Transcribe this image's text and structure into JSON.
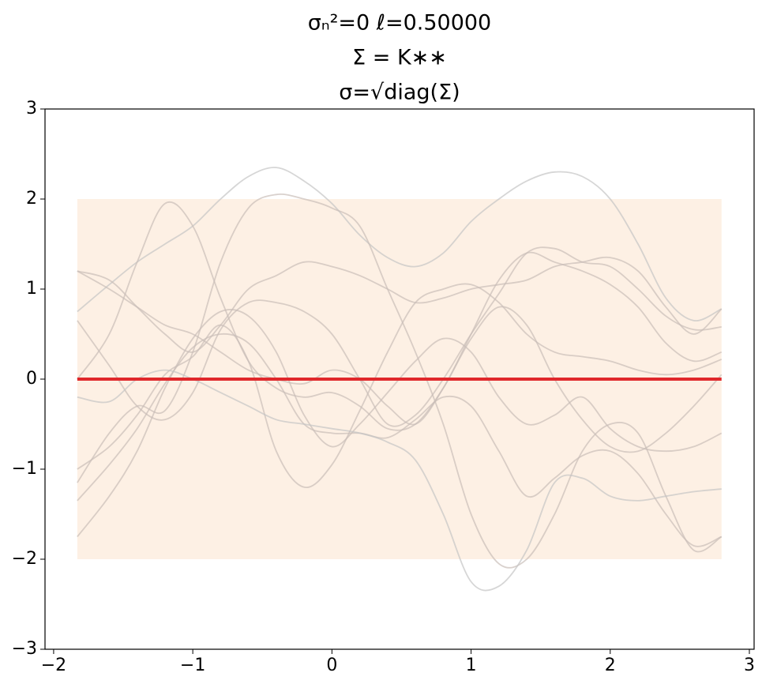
{
  "chart_data": {
    "type": "line",
    "title": [
      "σₙ²=0   ℓ=0.50000",
      "Σ = K∗∗",
      "σ=√diag(Σ)"
    ],
    "x": [
      -1.83,
      -1.6,
      -1.4,
      -1.2,
      -1.0,
      -0.8,
      -0.6,
      -0.4,
      -0.2,
      0,
      0.2,
      0.4,
      0.6,
      0.8,
      1.0,
      1.2,
      1.4,
      1.6,
      1.8,
      2.0,
      2.2,
      2.4,
      2.6,
      2.8
    ],
    "band": {
      "color": "#fdf0e4",
      "lower": [
        -2,
        -2,
        -2,
        -2,
        -2,
        -2,
        -2,
        -2,
        -2,
        -2,
        -2,
        -2,
        -2,
        -2,
        -2,
        -2,
        -2,
        -2,
        -2,
        -2,
        -2,
        -2,
        -2,
        -2
      ],
      "upper": [
        2,
        2,
        2,
        2,
        2,
        2,
        2,
        2,
        2,
        2,
        2,
        2,
        2,
        2,
        2,
        2,
        2,
        2,
        2,
        2,
        2,
        2,
        2,
        2
      ]
    },
    "series": [
      {
        "color": "#c4c4c4",
        "values": [
          0.75,
          1.05,
          1.3,
          1.5,
          1.7,
          2.0,
          2.25,
          2.35,
          2.2,
          1.95,
          1.6,
          1.35,
          1.25,
          1.4,
          1.75,
          2.0,
          2.2,
          2.3,
          2.25,
          2.0,
          1.5,
          0.9,
          0.65,
          0.78
        ]
      },
      {
        "color": "#c9bdb8",
        "values": [
          1.2,
          1.1,
          0.8,
          0.5,
          0.3,
          0.6,
          1.0,
          1.15,
          1.3,
          1.25,
          1.15,
          1.0,
          0.85,
          0.9,
          1.0,
          1.05,
          1.1,
          1.25,
          1.3,
          1.35,
          1.2,
          0.8,
          0.5,
          0.78
        ]
      },
      {
        "color": "#c9bdb8",
        "values": [
          0.0,
          0.5,
          1.3,
          1.95,
          1.7,
          0.9,
          0.2,
          -0.1,
          -0.2,
          -0.15,
          -0.3,
          -0.55,
          -0.5,
          -0.1,
          0.45,
          0.8,
          0.6,
          0.0,
          -0.45,
          -0.75,
          -0.8,
          -0.6,
          -0.3,
          0.05
        ]
      },
      {
        "color": "#c9bdb8",
        "values": [
          -1.15,
          -0.6,
          -0.3,
          -0.35,
          0.3,
          1.3,
          1.9,
          2.05,
          2.0,
          1.9,
          1.7,
          1.0,
          0.3,
          -0.5,
          -1.5,
          -2.05,
          -2.0,
          -1.5,
          -0.8,
          -0.5,
          -0.6,
          -1.3,
          -1.9,
          -1.75
        ]
      },
      {
        "color": "#c9bdb8",
        "values": [
          0.65,
          0.15,
          -0.3,
          -0.45,
          -0.15,
          0.55,
          0.85,
          0.85,
          0.75,
          0.5,
          0.0,
          -0.5,
          -0.4,
          0.0,
          0.5,
          0.95,
          1.4,
          1.45,
          1.3,
          1.25,
          1.0,
          0.7,
          0.55,
          0.58
        ]
      },
      {
        "color": "#c9bdb8",
        "values": [
          -1.75,
          -1.3,
          -0.8,
          -0.1,
          0.45,
          0.75,
          0.7,
          0.3,
          -0.4,
          -0.75,
          -0.5,
          -0.15,
          0.2,
          0.45,
          0.3,
          -0.2,
          -0.5,
          -0.4,
          -0.2,
          -0.55,
          -0.75,
          -0.8,
          -0.75,
          -0.6
        ]
      },
      {
        "color": "#c9bdb8",
        "values": [
          -1.35,
          -0.95,
          -0.55,
          -0.05,
          0.35,
          0.5,
          0.4,
          0.0,
          -0.5,
          -0.6,
          -0.6,
          -0.65,
          -0.45,
          -0.2,
          -0.3,
          -0.8,
          -1.3,
          -1.1,
          -0.85,
          -0.8,
          -1.05,
          -1.5,
          -1.85,
          -1.75
        ]
      },
      {
        "color": "#c9bdb8",
        "values": [
          -1.0,
          -0.75,
          -0.4,
          0.05,
          0.25,
          0.6,
          0.2,
          -0.8,
          -1.2,
          -0.95,
          -0.35,
          0.3,
          0.85,
          1.0,
          1.05,
          0.85,
          0.5,
          0.3,
          0.25,
          0.2,
          0.1,
          0.05,
          0.1,
          0.22
        ]
      },
      {
        "color": "#c4c4c4",
        "values": [
          -0.2,
          -0.25,
          0.0,
          0.1,
          0.0,
          -0.15,
          -0.3,
          -0.45,
          -0.5,
          -0.55,
          -0.6,
          -0.7,
          -0.9,
          -1.5,
          -2.25,
          -2.3,
          -1.9,
          -1.15,
          -1.1,
          -1.3,
          -1.35,
          -1.3,
          -1.25,
          -1.22
        ]
      },
      {
        "color": "#c9bdb8",
        "values": [
          1.2,
          1.0,
          0.8,
          0.6,
          0.5,
          0.3,
          0.1,
          0.0,
          -0.05,
          0.1,
          0.0,
          -0.3,
          -0.5,
          -0.1,
          0.5,
          1.1,
          1.4,
          1.3,
          1.2,
          1.05,
          0.8,
          0.4,
          0.2,
          0.3
        ]
      },
      {
        "color": "#e0282b",
        "width": 4,
        "values": [
          0,
          0,
          0,
          0,
          0,
          0,
          0,
          0,
          0,
          0,
          0,
          0,
          0,
          0,
          0,
          0,
          0,
          0,
          0,
          0,
          0,
          0,
          0,
          0
        ]
      }
    ],
    "alpha": 0.7,
    "xlim": [
      -2.062,
      3.034
    ],
    "ylim": [
      -3,
      3
    ],
    "xticks": [
      {
        "value": -2,
        "label": "−2"
      },
      {
        "value": -1,
        "label": "−1"
      },
      0,
      1,
      2,
      3
    ],
    "yticks": [
      {
        "value": -3,
        "label": "−3"
      },
      {
        "value": -2,
        "label": "−2"
      },
      {
        "value": -1,
        "label": "−1"
      },
      0,
      1,
      2,
      3
    ]
  }
}
